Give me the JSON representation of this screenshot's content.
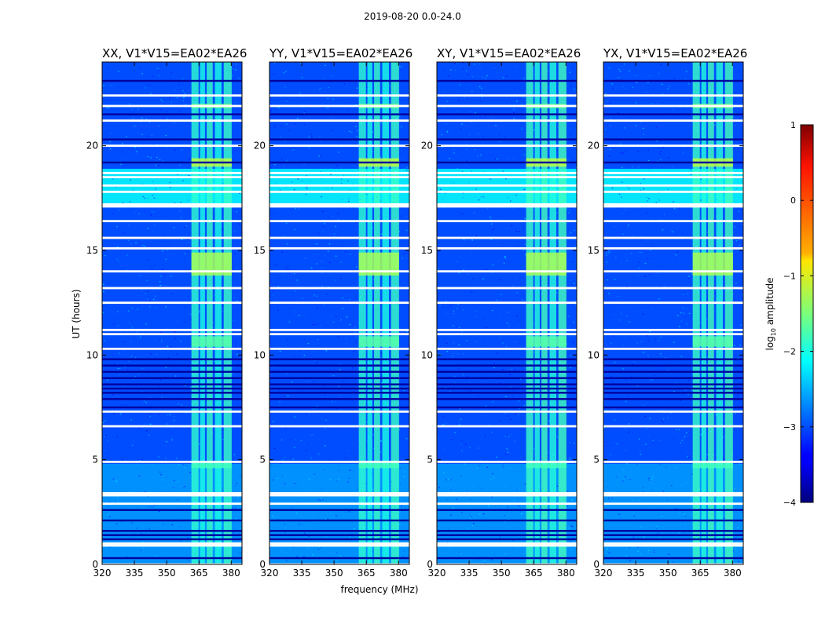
{
  "figure": {
    "suptitle": "2019-08-20 0.0-24.0",
    "xlabel": "frequency (MHz)",
    "ylabel": "UT (hours)",
    "colorbar_label_prefix": "log",
    "colorbar_label_sub": "10",
    "colorbar_label_suffix": " amplitude"
  },
  "chart_data": {
    "type": "heatmap",
    "colormap": "jet",
    "xlim": [
      320,
      385
    ],
    "ylim": [
      0,
      24
    ],
    "x_ticks": [
      320,
      335,
      350,
      365,
      380
    ],
    "x_tick_labels": [
      "320",
      "335",
      "350",
      "365",
      "380"
    ],
    "y_ticks": [
      0,
      5,
      10,
      15,
      20
    ],
    "y_tick_labels": [
      "0",
      "5",
      "10",
      "15",
      "20"
    ],
    "colorbar": {
      "range": [
        -4,
        1
      ],
      "ticks": [
        1,
        0,
        -1,
        -2,
        -3,
        -4
      ],
      "tick_labels": [
        "1",
        "0",
        "−1",
        "−2",
        "−3",
        "−4"
      ]
    },
    "panels": [
      {
        "title": "XX, V1*V15=EA02*EA26",
        "product": "XX"
      },
      {
        "title": "YY, V1*V15=EA02*EA26",
        "product": "YY"
      },
      {
        "title": "XY, V1*V15=EA02*EA26",
        "product": "XY"
      },
      {
        "title": "YX, V1*V15=EA02*EA26",
        "product": "YX"
      }
    ],
    "background_log_amplitude": -3.0,
    "flagged_gaps_ut": [
      0.0,
      0.9,
      1.0,
      2.9,
      3.3,
      3.4,
      4.9,
      6.6,
      7.3,
      10.3,
      11.0,
      11.2,
      12.5,
      13.2,
      14.0,
      15.1,
      15.6,
      16.4,
      17.1,
      17.2,
      17.8,
      18.1,
      18.5,
      18.7,
      20.0,
      21.2,
      21.9,
      22.4
    ],
    "dark_rows_ut": [
      0.3,
      1.2,
      1.4,
      1.6,
      2.1,
      2.6,
      7.5,
      7.9,
      8.2,
      8.4,
      8.6,
      8.9,
      9.2,
      9.5,
      9.8,
      19.2,
      20.3,
      21.5,
      23.1
    ],
    "enhanced_time_ranges": [
      {
        "ut_start": 17.1,
        "ut_end": 18.9,
        "log_amplitude": -2.1
      },
      {
        "ut_start": 0.0,
        "ut_end": 4.8,
        "log_amplitude": -2.6
      }
    ],
    "rfi_channels_mhz": [
      {
        "start": 361.5,
        "end": 364.8,
        "log_amplitude": -1.9
      },
      {
        "start": 365.5,
        "end": 367.8,
        "log_amplitude": -2.0
      },
      {
        "start": 368.6,
        "end": 371.4,
        "log_amplitude": -1.85
      },
      {
        "start": 372.4,
        "end": 375.5,
        "log_amplitude": -2.0
      },
      {
        "start": 376.5,
        "end": 380.2,
        "log_amplitude": -1.85
      }
    ],
    "rfi_bright_episodes": [
      {
        "ut_start": 13.8,
        "ut_end": 14.9,
        "log_amplitude": -1.3
      },
      {
        "ut_start": 10.4,
        "ut_end": 10.9,
        "log_amplitude": -1.7
      },
      {
        "ut_start": 19.0,
        "ut_end": 19.4,
        "log_amplitude": -1.2
      },
      {
        "ut_start": 21.8,
        "ut_end": 22.0,
        "log_amplitude": -1.5
      },
      {
        "ut_start": 4.6,
        "ut_end": 4.85,
        "log_amplitude": -1.8
      }
    ]
  }
}
